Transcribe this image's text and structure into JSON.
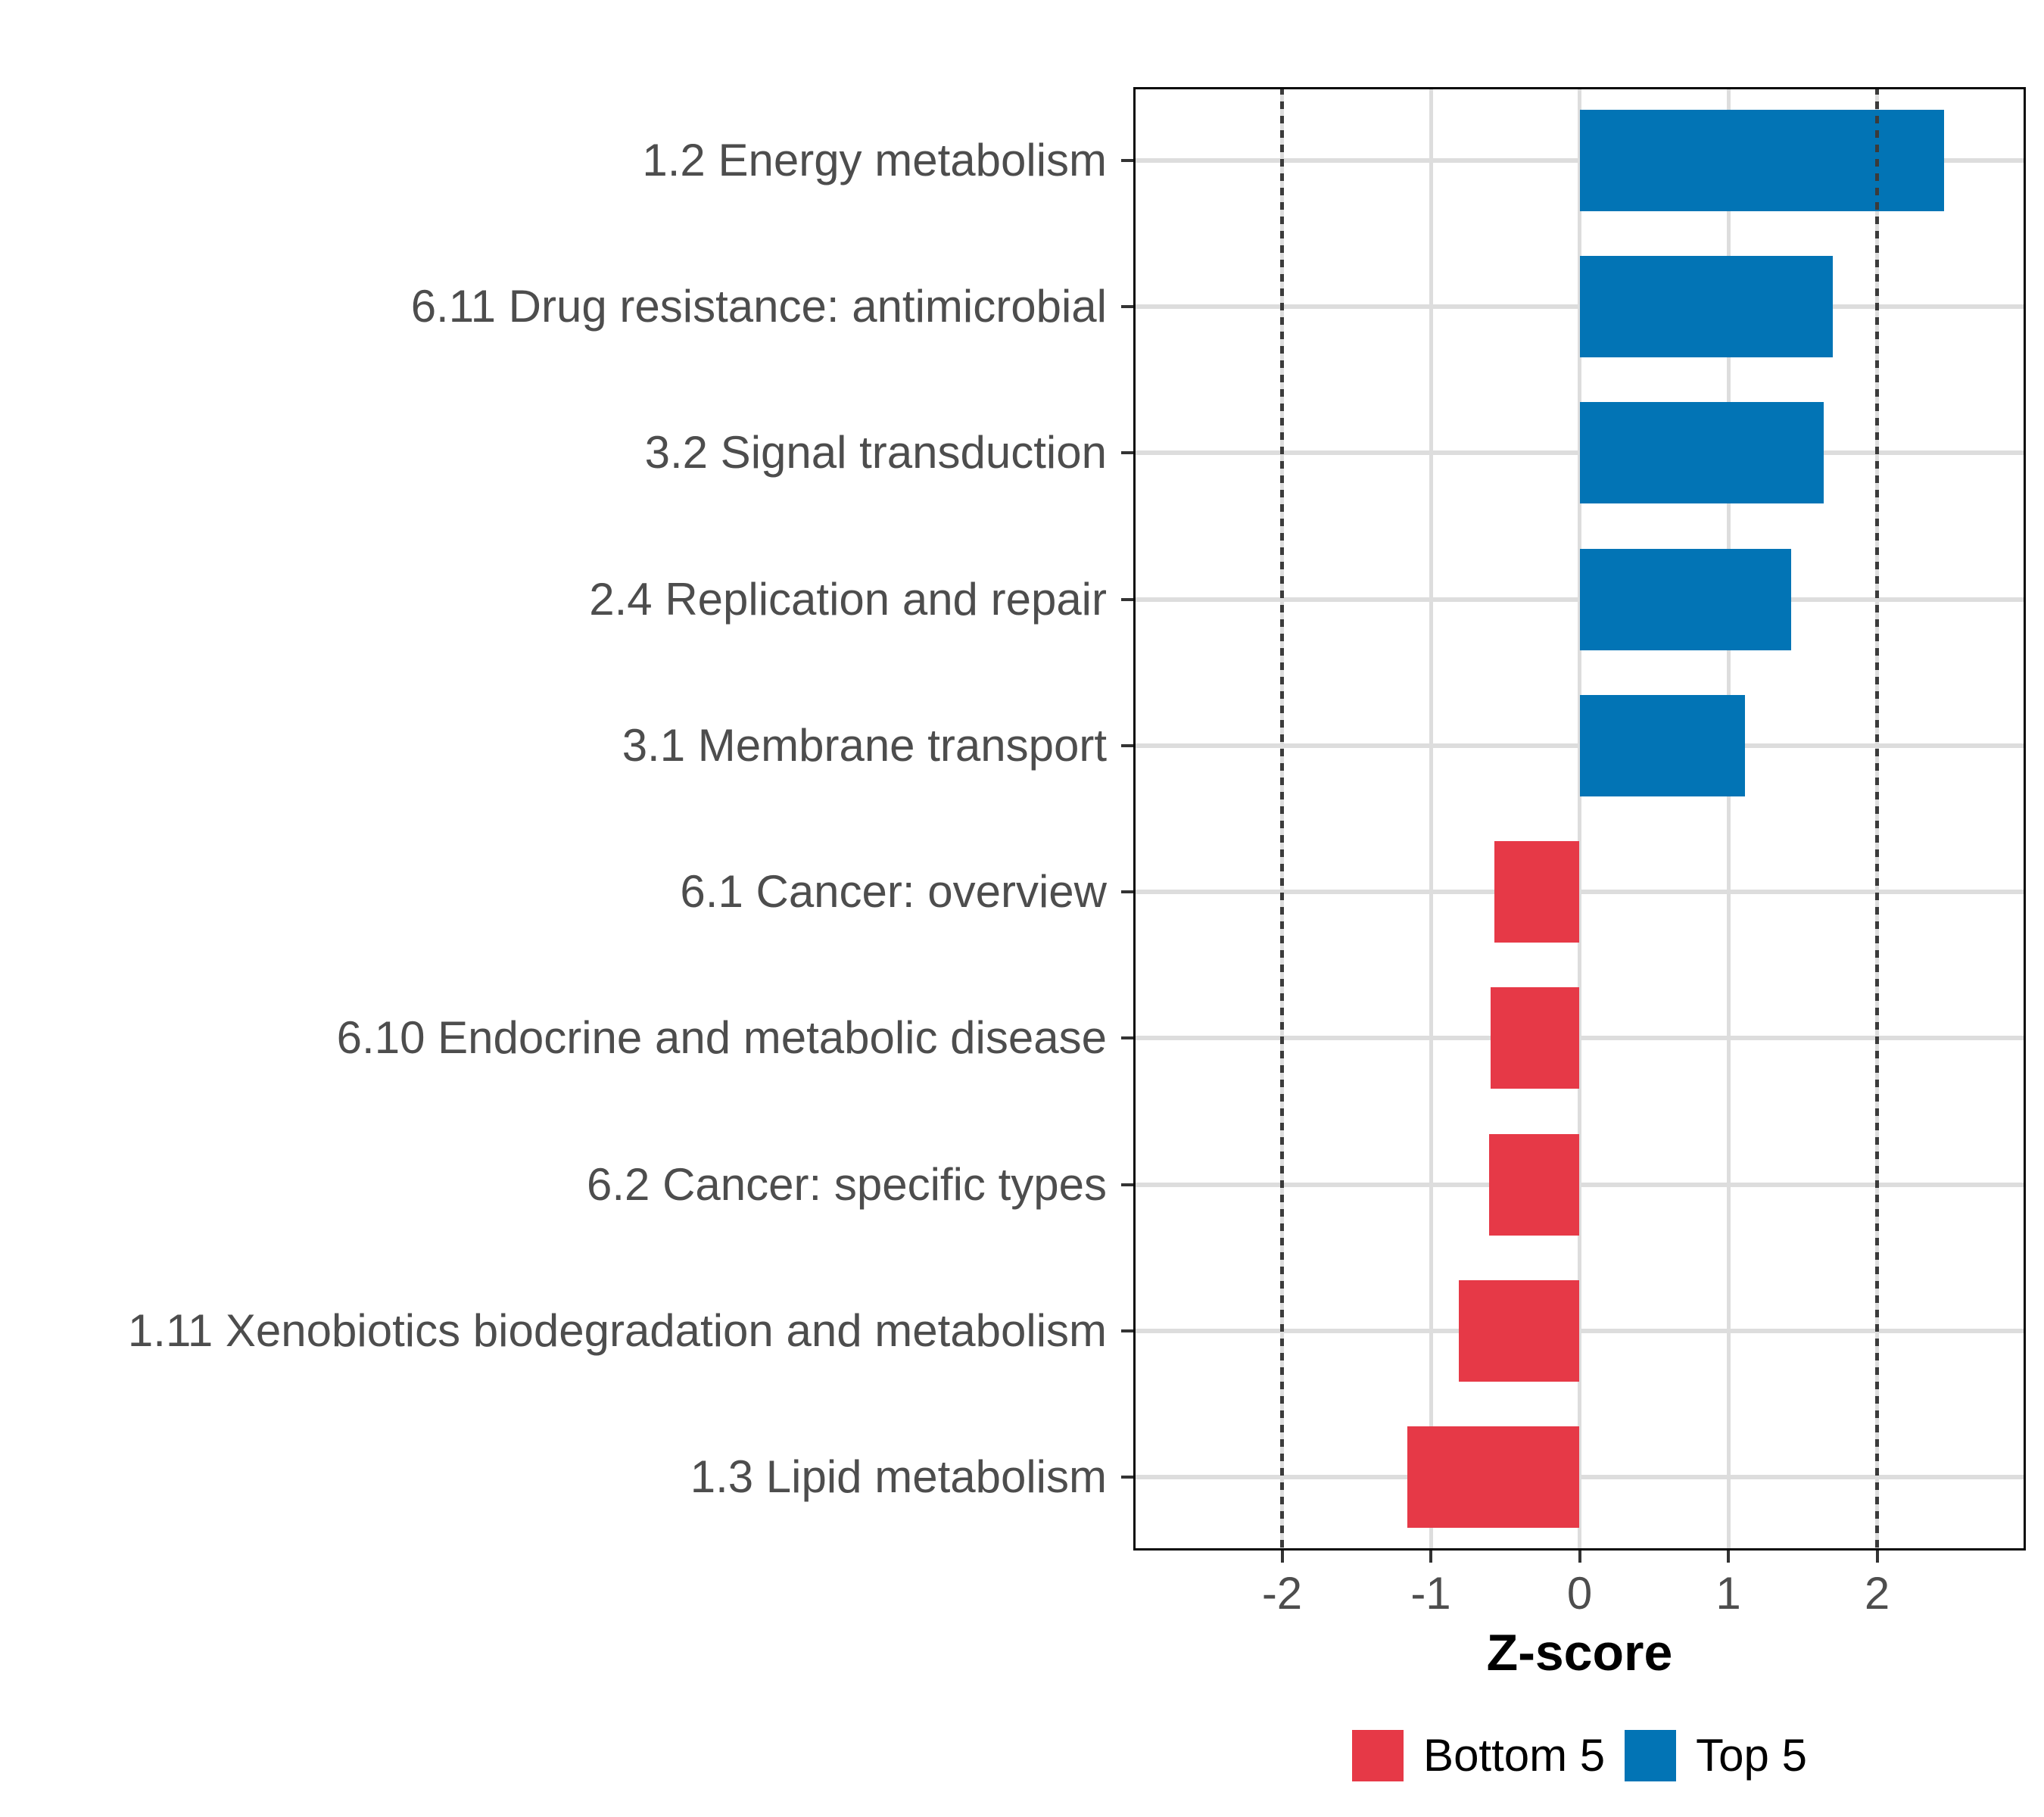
{
  "chart_data": {
    "type": "bar",
    "orientation": "horizontal",
    "title": "",
    "xlabel": "Z-score",
    "ylabel": "",
    "categories": [
      "1.2 Energy metabolism",
      "6.11 Drug resistance: antimicrobial",
      "3.2 Signal transduction",
      "2.4 Replication and repair",
      "3.1 Membrane transport",
      "6.1 Cancer: overview",
      "6.10 Endocrine and metabolic disease",
      "6.2 Cancer: specific types",
      "1.11 Xenobiotics biodegradation and metabolism",
      "1.3 Lipid metabolism"
    ],
    "values": [
      2.45,
      1.7,
      1.64,
      1.42,
      1.11,
      -0.57,
      -0.6,
      -0.61,
      -0.81,
      -1.16
    ],
    "series": [
      {
        "name": "Top 5",
        "color": "#0274b5",
        "rule": "values >= 0"
      },
      {
        "name": "Bottom 5",
        "color": "#e63947",
        "rule": "values < 0"
      }
    ],
    "xlim": [
      -3,
      3
    ],
    "x_ticks": [
      "-2",
      "-1",
      "0",
      "1",
      "2"
    ],
    "x_tick_values": [
      -2,
      -1,
      0,
      1,
      2
    ],
    "reference_lines": [
      -2,
      2
    ],
    "grid": "on",
    "legend_position": "bottom",
    "legend": [
      {
        "label": "Bottom 5",
        "color": "#e63947"
      },
      {
        "label": "Top 5",
        "color": "#0274b5"
      }
    ],
    "panel_border_color": "#0a0a0a",
    "grid_color": "#dddddd",
    "axis_text_color": "#4d4d4d"
  }
}
